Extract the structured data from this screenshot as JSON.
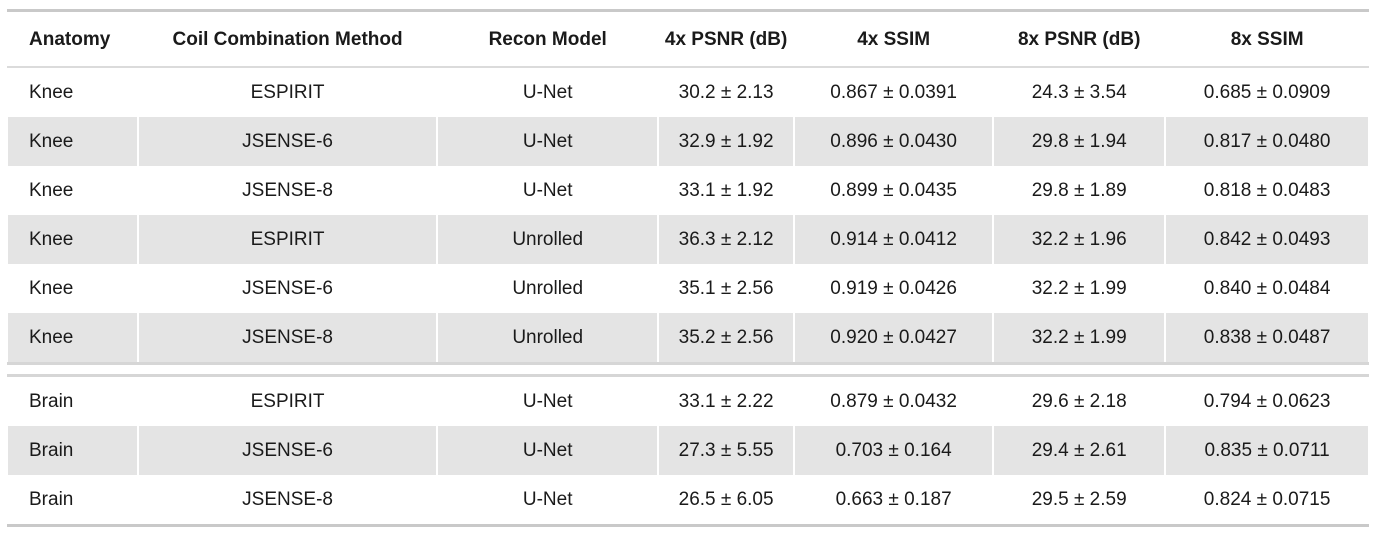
{
  "colors": {
    "text": "#1a1a1a",
    "zebra_row": "#e4e4e4",
    "rule_strong": "#c9c9c9",
    "rule_mid": "#d6d6d6",
    "rule_light": "#dbdbdb",
    "background": "#ffffff"
  },
  "chart_data": {
    "type": "table",
    "title": "",
    "columns": [
      "Anatomy",
      "Coil Combination Method",
      "Recon Model",
      "4x PSNR (dB)",
      "4x SSIM",
      "8x PSNR (dB)",
      "8x SSIM"
    ],
    "rows": [
      [
        "Knee",
        "ESPIRIT",
        "U-Net",
        "30.2 ± 2.13",
        "0.867 ± 0.0391",
        "24.3 ± 3.54",
        "0.685 ± 0.0909"
      ],
      [
        "Knee",
        "JSENSE-6",
        "U-Net",
        "32.9 ± 1.92",
        "0.896 ± 0.0430",
        "29.8 ± 1.94",
        "0.817 ± 0.0480"
      ],
      [
        "Knee",
        "JSENSE-8",
        "U-Net",
        "33.1 ± 1.92",
        "0.899 ± 0.0435",
        "29.8 ± 1.89",
        "0.818 ± 0.0483"
      ],
      [
        "Knee",
        "ESPIRIT",
        "Unrolled",
        "36.3 ± 2.12",
        "0.914 ± 0.0412",
        "32.2 ± 1.96",
        "0.842 ± 0.0493"
      ],
      [
        "Knee",
        "JSENSE-6",
        "Unrolled",
        "35.1 ± 2.56",
        "0.919 ± 0.0426",
        "32.2 ± 1.99",
        "0.840 ± 0.0484"
      ],
      [
        "Knee",
        "JSENSE-8",
        "Unrolled",
        "35.2 ± 2.56",
        "0.920 ± 0.0427",
        "32.2 ± 1.99",
        "0.838 ± 0.0487"
      ],
      [
        "Brain",
        "ESPIRIT",
        "U-Net",
        "33.1 ± 2.22",
        "0.879 ± 0.0432",
        "29.6 ± 2.18",
        "0.794 ± 0.0623"
      ],
      [
        "Brain",
        "JSENSE-6",
        "U-Net",
        "27.3 ± 5.55",
        "0.703 ± 0.164",
        "29.4 ± 2.61",
        "0.835 ± 0.0711"
      ],
      [
        "Brain",
        "JSENSE-8",
        "U-Net",
        "26.5 ± 6.05",
        "0.663 ± 0.187",
        "29.5 ± 2.59",
        "0.824 ± 0.0715"
      ]
    ]
  },
  "table": {
    "columns": [
      {
        "key": "anatomy",
        "label": "Anatomy"
      },
      {
        "key": "coil-combination-method",
        "label": "Coil Combination Method"
      },
      {
        "key": "recon-model",
        "label": "Recon Model"
      },
      {
        "key": "4x-psnr-db",
        "label": "4x PSNR (dB)"
      },
      {
        "key": "4x-ssim",
        "label": "4x SSIM"
      },
      {
        "key": "8x-psnr-db",
        "label": "8x PSNR (dB)"
      },
      {
        "key": "8x-ssim",
        "label": "8x SSIM"
      }
    ],
    "sections": [
      {
        "name": "knee",
        "rows": [
          [
            "Knee",
            "ESPIRIT",
            "U-Net",
            "30.2 ± 2.13",
            "0.867 ± 0.0391",
            "24.3 ± 3.54",
            "0.685 ± 0.0909"
          ],
          [
            "Knee",
            "JSENSE-6",
            "U-Net",
            "32.9 ± 1.92",
            "0.896 ± 0.0430",
            "29.8 ± 1.94",
            "0.817 ± 0.0480"
          ],
          [
            "Knee",
            "JSENSE-8",
            "U-Net",
            "33.1 ± 1.92",
            "0.899 ± 0.0435",
            "29.8 ± 1.89",
            "0.818 ± 0.0483"
          ],
          [
            "Knee",
            "ESPIRIT",
            "Unrolled",
            "36.3 ± 2.12",
            "0.914 ± 0.0412",
            "32.2 ± 1.96",
            "0.842 ± 0.0493"
          ],
          [
            "Knee",
            "JSENSE-6",
            "Unrolled",
            "35.1 ± 2.56",
            "0.919 ± 0.0426",
            "32.2 ± 1.99",
            "0.840 ± 0.0484"
          ],
          [
            "Knee",
            "JSENSE-8",
            "Unrolled",
            "35.2 ± 2.56",
            "0.920 ± 0.0427",
            "32.2 ± 1.99",
            "0.838 ± 0.0487"
          ]
        ]
      },
      {
        "name": "brain",
        "rows": [
          [
            "Brain",
            "ESPIRIT",
            "U-Net",
            "33.1 ± 2.22",
            "0.879 ± 0.0432",
            "29.6 ± 2.18",
            "0.794 ± 0.0623"
          ],
          [
            "Brain",
            "JSENSE-6",
            "U-Net",
            "27.3 ± 5.55",
            "0.703 ± 0.164",
            "29.4 ± 2.61",
            "0.835 ± 0.0711"
          ],
          [
            "Brain",
            "JSENSE-8",
            "U-Net",
            "26.5 ± 6.05",
            "0.663 ± 0.187",
            "29.5 ± 2.59",
            "0.824 ± 0.0715"
          ]
        ]
      }
    ]
  }
}
